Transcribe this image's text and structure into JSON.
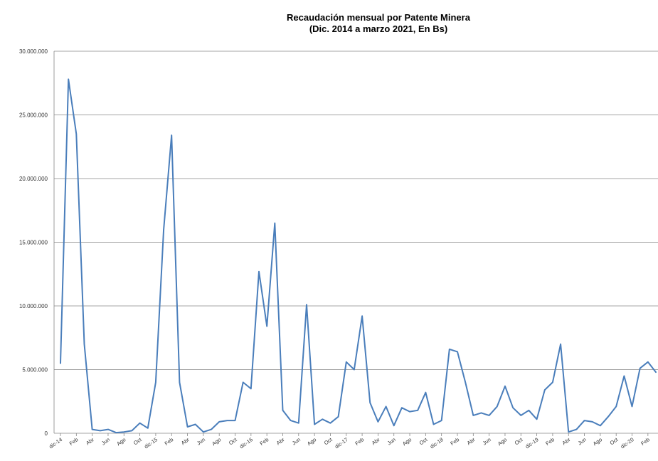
{
  "chart_data": {
    "type": "line",
    "title": "Recaudación mensual por Patente Minera",
    "subtitle": "(Dic. 2014 a marzo 2021, En Bs)",
    "xlabel": "",
    "ylabel": "",
    "ylim": [
      0,
      30000000
    ],
    "yticks": [
      0,
      5000000,
      10000000,
      15000000,
      20000000,
      25000000,
      30000000
    ],
    "ytick_labels": [
      "0",
      "5.000.000",
      "10.000.000",
      "15.000.000",
      "20.000.000",
      "25.000.000",
      "30.000.000"
    ],
    "grid": "horizontal",
    "line_color": "#4a7ebb",
    "x_labels": [
      {
        "i": 0,
        "label": "dic-14"
      },
      {
        "i": 2,
        "label": "Feb"
      },
      {
        "i": 4,
        "label": "Abr"
      },
      {
        "i": 6,
        "label": "Jun"
      },
      {
        "i": 8,
        "label": "Ago"
      },
      {
        "i": 10,
        "label": "Oct"
      },
      {
        "i": 12,
        "label": "dic-15"
      },
      {
        "i": 14,
        "label": "Feb"
      },
      {
        "i": 16,
        "label": "Abr"
      },
      {
        "i": 18,
        "label": "Jun"
      },
      {
        "i": 20,
        "label": "Ago"
      },
      {
        "i": 22,
        "label": "Oct"
      },
      {
        "i": 24,
        "label": "dic-16"
      },
      {
        "i": 26,
        "label": "Feb"
      },
      {
        "i": 28,
        "label": "Abr"
      },
      {
        "i": 30,
        "label": "Jun"
      },
      {
        "i": 32,
        "label": "Ago"
      },
      {
        "i": 34,
        "label": "Oct"
      },
      {
        "i": 36,
        "label": "dic-17"
      },
      {
        "i": 38,
        "label": "Feb"
      },
      {
        "i": 40,
        "label": "Abr"
      },
      {
        "i": 42,
        "label": "Jun"
      },
      {
        "i": 44,
        "label": "Ago"
      },
      {
        "i": 46,
        "label": "Oct"
      },
      {
        "i": 48,
        "label": "dic-18"
      },
      {
        "i": 50,
        "label": "Feb"
      },
      {
        "i": 52,
        "label": "Abr"
      },
      {
        "i": 54,
        "label": "Jun"
      },
      {
        "i": 56,
        "label": "Ago"
      },
      {
        "i": 58,
        "label": "Oct"
      },
      {
        "i": 60,
        "label": "dic-19"
      },
      {
        "i": 62,
        "label": "Feb"
      },
      {
        "i": 64,
        "label": "Abr"
      },
      {
        "i": 66,
        "label": "Jun"
      },
      {
        "i": 68,
        "label": "Ago"
      },
      {
        "i": 70,
        "label": "Oct"
      },
      {
        "i": 72,
        "label": "dic-20"
      },
      {
        "i": 74,
        "label": "Feb"
      }
    ],
    "values": [
      5500000,
      27800000,
      23500000,
      7000000,
      300000,
      200000,
      300000,
      50000,
      100000,
      200000,
      800000,
      400000,
      4000000,
      16000000,
      23400000,
      4000000,
      500000,
      700000,
      100000,
      300000,
      900000,
      1000000,
      1000000,
      4000000,
      3500000,
      12700000,
      8400000,
      16500000,
      1800000,
      1000000,
      800000,
      10100000,
      700000,
      1100000,
      800000,
      1300000,
      5600000,
      5000000,
      9200000,
      2400000,
      900000,
      2100000,
      600000,
      2000000,
      1700000,
      1800000,
      3200000,
      700000,
      1000000,
      6600000,
      6400000,
      4000000,
      1400000,
      1600000,
      1400000,
      2100000,
      3700000,
      2000000,
      1400000,
      1800000,
      1100000,
      3400000,
      4000000,
      7000000,
      100000,
      300000,
      1000000,
      900000,
      600000,
      1300000,
      2100000,
      4500000,
      2100000,
      5100000,
      5600000,
      4800000
    ]
  }
}
